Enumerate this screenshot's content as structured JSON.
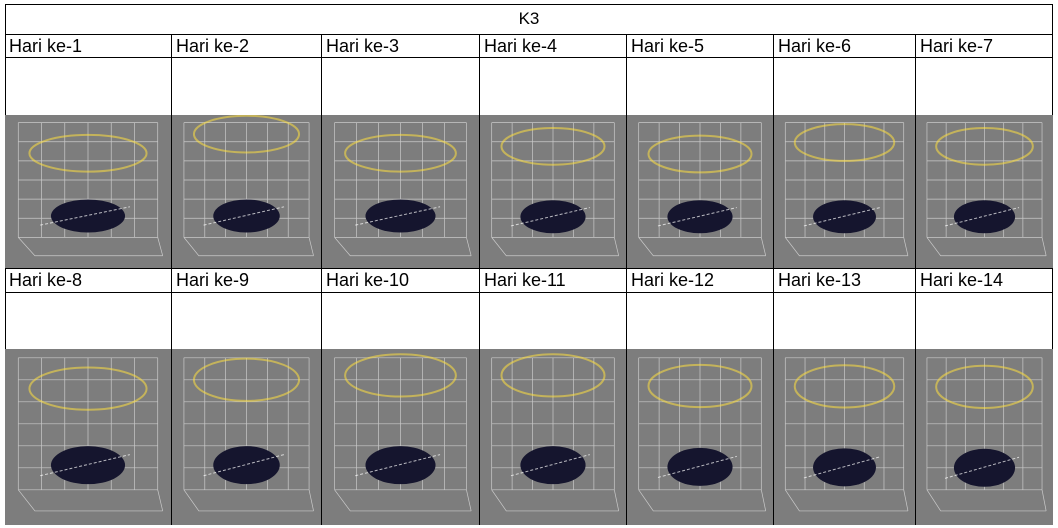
{
  "table": {
    "title": "K3",
    "row1_labels": [
      "Hari ke-1",
      "Hari ke-2",
      "Hari ke-3",
      "Hari ke-4",
      "Hari ke-5",
      "Hari ke-6",
      "Hari ke-7"
    ],
    "row2_labels": [
      "Hari ke-8",
      "Hari ke-9",
      "Hari ke-10",
      "Hari ke-11",
      "Hari ke-12",
      "Hari ke-13",
      "Hari ke-14"
    ]
  },
  "colors": {
    "plot_background": "#7d7d7d",
    "grid": "#d8d8d8",
    "base": "#15152e",
    "gradient": [
      "#1d1d5a",
      "#5a2fd8",
      "#c03ac0",
      "#f24a3a",
      "#ff9a2a",
      "#ffe040"
    ]
  },
  "icons": [
    "surface-3d-plot-icon"
  ]
}
